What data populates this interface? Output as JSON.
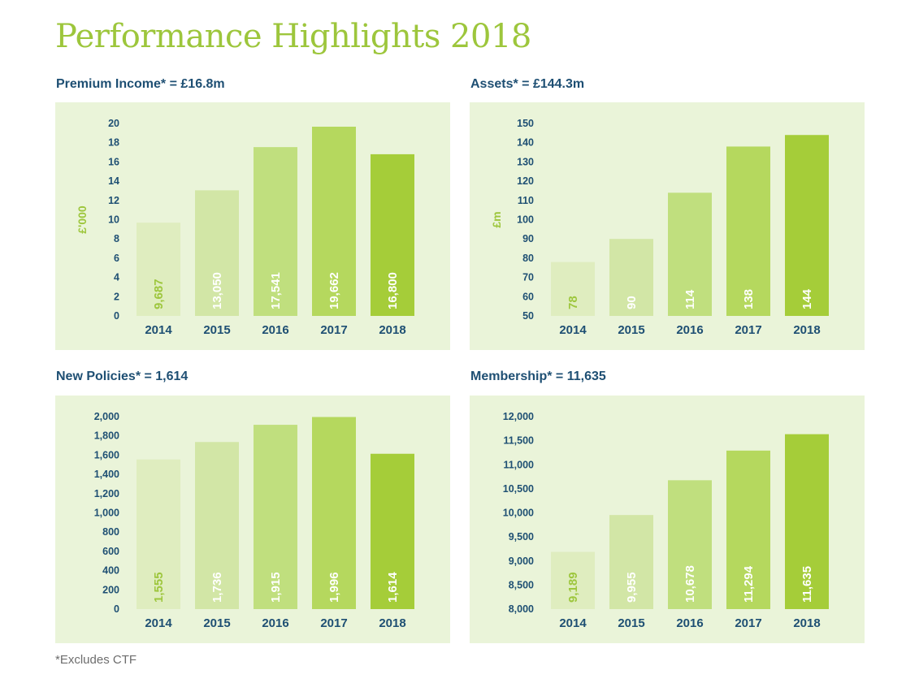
{
  "page_title": "Performance Highlights 2018",
  "footnote": "*Excludes CTF",
  "colors": {
    "title": "#9dc63c",
    "heading": "#1e4f73",
    "panel_bg": "#eaf4d9",
    "axis_text": "#1e4f73",
    "unit_text": "#9dc63c",
    "bars": [
      "#dfedbf",
      "#d2e6a6",
      "#c0df7e",
      "#b5d85e",
      "#a5cd39"
    ],
    "bar_label_first": "#9dc63c",
    "bar_label": "#ffffff"
  },
  "chart_data": [
    {
      "type": "bar",
      "title": "Premium Income* = £16.8m",
      "ylabel": "£'000",
      "categories": [
        "2014",
        "2015",
        "2016",
        "2017",
        "2018"
      ],
      "values": [
        9.687,
        13.05,
        17.541,
        19.662,
        16.8
      ],
      "value_labels": [
        "9,687",
        "13,050",
        "17,541",
        "19,662",
        "16,800"
      ],
      "ylim": [
        0,
        20
      ],
      "yticks": [
        0,
        2,
        4,
        6,
        8,
        10,
        12,
        14,
        16,
        18,
        20
      ],
      "ytick_labels": [
        "0",
        "2",
        "4",
        "6",
        "8",
        "10",
        "12",
        "14",
        "16",
        "18",
        "20"
      ],
      "grid": false,
      "legend": "none"
    },
    {
      "type": "bar",
      "title": "Assets* = £144.3m",
      "ylabel": "£m",
      "categories": [
        "2014",
        "2015",
        "2016",
        "2017",
        "2018"
      ],
      "values": [
        78,
        90,
        114,
        138,
        144
      ],
      "value_labels": [
        "78",
        "90",
        "114",
        "138",
        "144"
      ],
      "ylim": [
        50,
        150
      ],
      "yticks": [
        50,
        60,
        70,
        80,
        90,
        100,
        110,
        120,
        130,
        140,
        150
      ],
      "ytick_labels": [
        "50",
        "60",
        "70",
        "80",
        "90",
        "100",
        "110",
        "120",
        "130",
        "140",
        "150"
      ],
      "grid": false,
      "legend": "none"
    },
    {
      "type": "bar",
      "title": "New Policies* = 1,614",
      "ylabel": "",
      "categories": [
        "2014",
        "2015",
        "2016",
        "2017",
        "2018"
      ],
      "values": [
        1555,
        1736,
        1915,
        1996,
        1614
      ],
      "value_labels": [
        "1,555",
        "1,736",
        "1,915",
        "1,996",
        "1,614"
      ],
      "ylim": [
        0,
        2000
      ],
      "yticks": [
        0,
        200,
        400,
        600,
        800,
        1000,
        1200,
        1400,
        1600,
        1800,
        2000
      ],
      "ytick_labels": [
        "0",
        "200",
        "400",
        "600",
        "800",
        "1,000",
        "1,200",
        "1,400",
        "1,600",
        "1,800",
        "2,000"
      ],
      "grid": false,
      "legend": "none"
    },
    {
      "type": "bar",
      "title": "Membership* = 11,635",
      "ylabel": "",
      "categories": [
        "2014",
        "2015",
        "2016",
        "2017",
        "2018"
      ],
      "values": [
        9189,
        9955,
        10678,
        11294,
        11635
      ],
      "value_labels": [
        "9,189",
        "9,955",
        "10,678",
        "11,294",
        "11,635"
      ],
      "ylim": [
        8000,
        12000
      ],
      "yticks": [
        8000,
        8500,
        9000,
        9500,
        10000,
        10500,
        11000,
        11500,
        12000
      ],
      "ytick_labels": [
        "8,000",
        "8,500",
        "9,000",
        "9,500",
        "10,000",
        "10,500",
        "11,000",
        "11,500",
        "12,000"
      ],
      "grid": false,
      "legend": "none"
    }
  ]
}
